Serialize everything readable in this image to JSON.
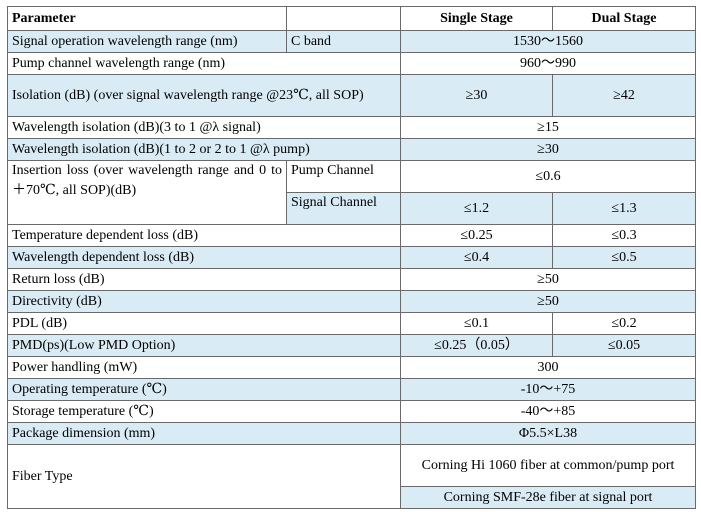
{
  "header": {
    "parameter": "Parameter",
    "single_stage": "Single Stage",
    "dual_stage": "Dual Stage"
  },
  "rows": {
    "signal_wavelength": {
      "label": "Signal operation wavelength range (nm)",
      "sub": "C band",
      "value": "1530～1560"
    },
    "pump_wavelength": {
      "label": "Pump channel wavelength range (nm)",
      "value": "960～990"
    },
    "isolation": {
      "label": "Isolation (dB) (over signal wavelength range @23℃, all SOP)",
      "single": "≥30",
      "dual": "≥42"
    },
    "wl_isolation_signal": {
      "label": "Wavelength isolation (dB)(3 to 1 @λ signal)",
      "value": "≥15"
    },
    "wl_isolation_pump": {
      "label": "Wavelength isolation (dB)(1 to 2 or 2 to 1 @λ pump)",
      "value": "≥30"
    },
    "insertion_loss": {
      "label": "Insertion loss (over wavelength range and 0 to＋70℃, all SOP)(dB)",
      "pump_channel": {
        "label": "Pump Channel",
        "value": "≤0.6"
      },
      "signal_channel": {
        "label": "Signal Channel",
        "single": "≤1.2",
        "dual": "≤1.3"
      }
    },
    "temp_dependent_loss": {
      "label": "Temperature dependent loss (dB)",
      "single": "≤0.25",
      "dual": "≤0.3"
    },
    "wl_dependent_loss": {
      "label": "Wavelength dependent loss (dB)",
      "single": "≤0.4",
      "dual": "≤0.5"
    },
    "return_loss": {
      "label": "Return loss (dB)",
      "value": "≥50"
    },
    "directivity": {
      "label": "Directivity (dB)",
      "value": "≥50"
    },
    "pdl": {
      "label": "PDL (dB)",
      "single": "≤0.1",
      "dual": "≤0.2"
    },
    "pmd": {
      "label": "PMD(ps)(Low PMD Option)",
      "single": "≤0.25（0.05）",
      "dual": "≤0.05"
    },
    "power_handling": {
      "label": "Power handling (mW)",
      "value": "300"
    },
    "operating_temp": {
      "label": "Operating temperature (℃)",
      "value": "-10～+75"
    },
    "storage_temp": {
      "label": "Storage temperature (℃)",
      "value": "-40～+85"
    },
    "package_dimension": {
      "label": "Package dimension (mm)",
      "value": "Φ5.5×L38"
    },
    "fiber_type": {
      "label": "Fiber Type",
      "common_pump": "Corning Hi 1060 fiber at common/pump port",
      "signal": "Corning SMF-28e fiber at signal port"
    }
  },
  "colors": {
    "shaded_row": "#d9ebf4",
    "border": "#6a6a6a"
  }
}
